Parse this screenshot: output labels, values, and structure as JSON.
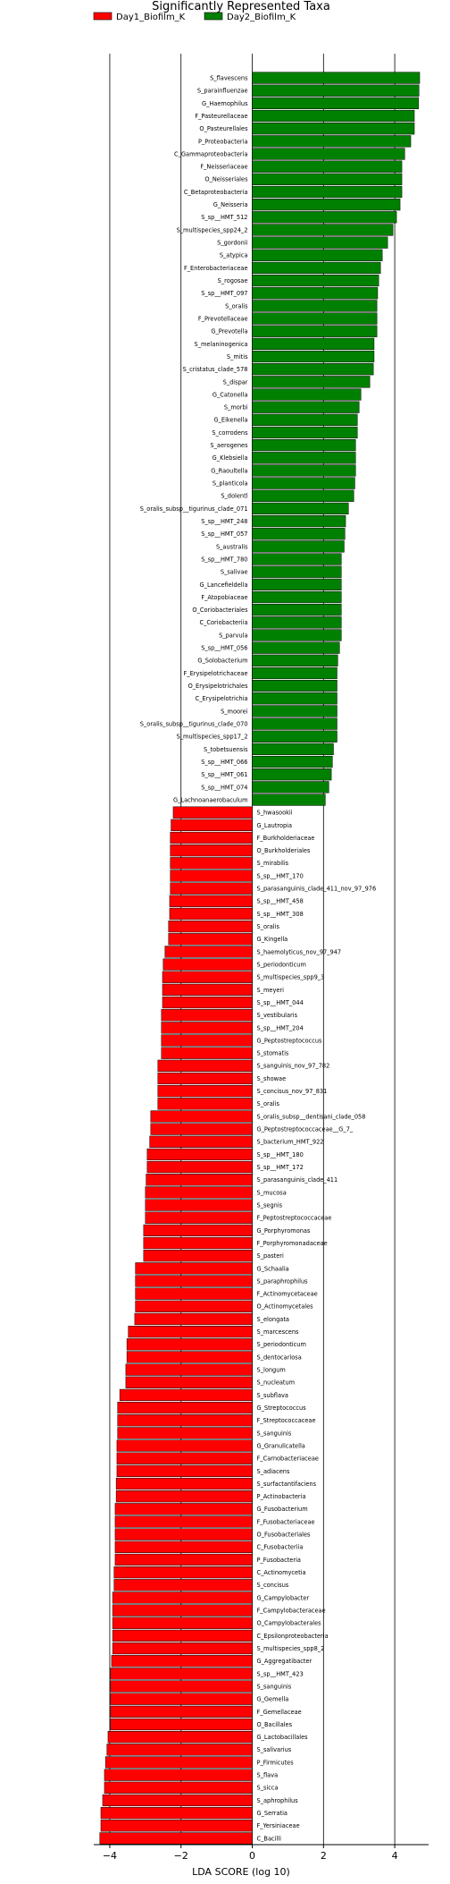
{
  "chart_data": {
    "type": "bar",
    "orientation": "horizontal",
    "title": "Significantly Represented Taxa",
    "xlabel": "LDA SCORE (log 10)",
    "xlim": [
      -4.45,
      4.95
    ],
    "xticks": [
      -4,
      -2,
      0,
      2,
      4
    ],
    "grid": "vertical-lines",
    "legend_position": "top-left",
    "series": [
      {
        "name": "Day1_Biofilm_K",
        "color": "#ff0000"
      },
      {
        "name": "Day2_Biofilm_K",
        "color": "#008000"
      }
    ],
    "bars": [
      {
        "label": "S_flavescens",
        "value": 4.7,
        "series": 1
      },
      {
        "label": "S_parainfluenzae",
        "value": 4.68,
        "series": 1
      },
      {
        "label": "G_Haemophilus",
        "value": 4.67,
        "series": 1
      },
      {
        "label": "F_Pasteurellaceae",
        "value": 4.55,
        "series": 1
      },
      {
        "label": "O_Pasteurellales",
        "value": 4.55,
        "series": 1
      },
      {
        "label": "P_Proteobacteria",
        "value": 4.45,
        "series": 1
      },
      {
        "label": "C_Gammaproteobacteria",
        "value": 4.28,
        "series": 1
      },
      {
        "label": "F_Neisseriaceae",
        "value": 4.2,
        "series": 1
      },
      {
        "label": "O_Neisseriales",
        "value": 4.2,
        "series": 1
      },
      {
        "label": "C_Betaproteobacteria",
        "value": 4.2,
        "series": 1
      },
      {
        "label": "G_Neisseria",
        "value": 4.15,
        "series": 1
      },
      {
        "label": "S_sp__HMT_512",
        "value": 4.05,
        "series": 1
      },
      {
        "label": "S_multispecies_spp24_2",
        "value": 3.95,
        "series": 1
      },
      {
        "label": "S_gordonii",
        "value": 3.8,
        "series": 1
      },
      {
        "label": "S_atypica",
        "value": 3.65,
        "series": 1
      },
      {
        "label": "F_Enterobacteriaceae",
        "value": 3.6,
        "series": 1
      },
      {
        "label": "S_rogosae",
        "value": 3.55,
        "series": 1
      },
      {
        "label": "S_sp__HMT_097",
        "value": 3.52,
        "series": 1
      },
      {
        "label": "S_oralis",
        "value": 3.5,
        "series": 1
      },
      {
        "label": "F_Prevotellaceae",
        "value": 3.5,
        "series": 1
      },
      {
        "label": "G_Prevotella",
        "value": 3.5,
        "series": 1
      },
      {
        "label": "S_melaninogenica",
        "value": 3.42,
        "series": 1
      },
      {
        "label": "S_mitis",
        "value": 3.42,
        "series": 1
      },
      {
        "label": "S_cristatus_clade_578",
        "value": 3.4,
        "series": 1
      },
      {
        "label": "S_dispar",
        "value": 3.3,
        "series": 1
      },
      {
        "label": "G_Catonella",
        "value": 3.05,
        "series": 1
      },
      {
        "label": "S_morbi",
        "value": 3.0,
        "series": 1
      },
      {
        "label": "G_Eikenella",
        "value": 2.95,
        "series": 1
      },
      {
        "label": "S_corrodens",
        "value": 2.95,
        "series": 1
      },
      {
        "label": "S_aerogenes",
        "value": 2.9,
        "series": 1
      },
      {
        "label": "G_Klebsiella",
        "value": 2.9,
        "series": 1
      },
      {
        "label": "G_Raoultella",
        "value": 2.9,
        "series": 1
      },
      {
        "label": "S_planticola",
        "value": 2.88,
        "series": 1
      },
      {
        "label": "S_dolentl",
        "value": 2.85,
        "series": 1
      },
      {
        "label": "S_oralis_subsp__tigurinus_clade_071",
        "value": 2.7,
        "series": 1
      },
      {
        "label": "S_sp__HMT_248",
        "value": 2.62,
        "series": 1
      },
      {
        "label": "S_sp__HMT_057",
        "value": 2.6,
        "series": 1
      },
      {
        "label": "S_australis",
        "value": 2.58,
        "series": 1
      },
      {
        "label": "S_sp__HMT_780",
        "value": 2.5,
        "series": 1
      },
      {
        "label": "S_salivae",
        "value": 2.5,
        "series": 1
      },
      {
        "label": "G_Lancefieldella",
        "value": 2.5,
        "series": 1
      },
      {
        "label": "F_Atopobiaceae",
        "value": 2.5,
        "series": 1
      },
      {
        "label": "O_Coriobacteriales",
        "value": 2.5,
        "series": 1
      },
      {
        "label": "C_Coriobacteriia",
        "value": 2.5,
        "series": 1
      },
      {
        "label": "S_parvula",
        "value": 2.5,
        "series": 1
      },
      {
        "label": "S_sp__HMT_056",
        "value": 2.45,
        "series": 1
      },
      {
        "label": "G_Solobacterium",
        "value": 2.4,
        "series": 1
      },
      {
        "label": "F_Erysipelotrichaceae",
        "value": 2.38,
        "series": 1
      },
      {
        "label": "O_Erysipelotrichales",
        "value": 2.38,
        "series": 1
      },
      {
        "label": "C_Erysipelotrichia",
        "value": 2.38,
        "series": 1
      },
      {
        "label": "S_moorei",
        "value": 2.38,
        "series": 1
      },
      {
        "label": "S_oralis_subsp__tigurinus_clade_070",
        "value": 2.38,
        "series": 1
      },
      {
        "label": "S_multispecies_spp17_2",
        "value": 2.38,
        "series": 1
      },
      {
        "label": "S_tobetsuensis",
        "value": 2.28,
        "series": 1
      },
      {
        "label": "S_sp__HMT_066",
        "value": 2.25,
        "series": 1
      },
      {
        "label": "S_sp__HMT_061",
        "value": 2.22,
        "series": 1
      },
      {
        "label": "S_sp__HMT_074",
        "value": 2.15,
        "series": 1
      },
      {
        "label": "G_Lachnoanaerobaculum",
        "value": 2.05,
        "series": 1
      },
      {
        "label": "S_hwasookii",
        "value": -2.22,
        "series": 0
      },
      {
        "label": "G_Lautropia",
        "value": -2.28,
        "series": 0
      },
      {
        "label": "F_Burkholderiaceae",
        "value": -2.3,
        "series": 0
      },
      {
        "label": "O_Burkholderiales",
        "value": -2.3,
        "series": 0
      },
      {
        "label": "S_mirabilis",
        "value": -2.3,
        "series": 0
      },
      {
        "label": "S_sp__HMT_170",
        "value": -2.3,
        "series": 0
      },
      {
        "label": "S_parasanguinis_clade_411_nov_97_976",
        "value": -2.3,
        "series": 0
      },
      {
        "label": "S_sp__HMT_458",
        "value": -2.32,
        "series": 0
      },
      {
        "label": "S_sp__HMT_308",
        "value": -2.32,
        "series": 0
      },
      {
        "label": "S_oralis",
        "value": -2.35,
        "series": 0
      },
      {
        "label": "G_Kingella",
        "value": -2.35,
        "series": 0
      },
      {
        "label": "S_haemolyticus_nov_97_947",
        "value": -2.45,
        "series": 0
      },
      {
        "label": "S_periodonticum",
        "value": -2.5,
        "series": 0
      },
      {
        "label": "S_multispecies_spp9_3",
        "value": -2.52,
        "series": 0
      },
      {
        "label": "S_meyeri",
        "value": -2.52,
        "series": 0
      },
      {
        "label": "S_sp__HMT_044",
        "value": -2.52,
        "series": 0
      },
      {
        "label": "S_vestibularis",
        "value": -2.55,
        "series": 0
      },
      {
        "label": "S_sp__HMT_204",
        "value": -2.55,
        "series": 0
      },
      {
        "label": "G_Peptostreptococcus",
        "value": -2.55,
        "series": 0
      },
      {
        "label": "S_stomatis",
        "value": -2.55,
        "series": 0
      },
      {
        "label": "S_sanguinis_nov_97_782",
        "value": -2.65,
        "series": 0
      },
      {
        "label": "S_showae",
        "value": -2.65,
        "series": 0
      },
      {
        "label": "S_concisus_nov_97_831",
        "value": -2.65,
        "series": 0
      },
      {
        "label": "S_oralis",
        "value": -2.65,
        "series": 0
      },
      {
        "label": "S_oralis_subsp__dentisani_clade_058",
        "value": -2.85,
        "series": 0
      },
      {
        "label": "G_Peptostreptococcaceae__G_7_",
        "value": -2.85,
        "series": 0
      },
      {
        "label": "S_bacterium_HMT_922",
        "value": -2.88,
        "series": 0
      },
      {
        "label": "S_sp__HMT_180",
        "value": -2.95,
        "series": 0
      },
      {
        "label": "S_sp__HMT_172",
        "value": -2.95,
        "series": 0
      },
      {
        "label": "S_parasanguinis_clade_411",
        "value": -2.98,
        "series": 0
      },
      {
        "label": "S_mucosa",
        "value": -3.0,
        "series": 0
      },
      {
        "label": "S_segnis",
        "value": -3.0,
        "series": 0
      },
      {
        "label": "F_Peptostreptococcaceae",
        "value": -3.0,
        "series": 0
      },
      {
        "label": "G_Porphyromonas",
        "value": -3.05,
        "series": 0
      },
      {
        "label": "F_Porphyromonadaceae",
        "value": -3.05,
        "series": 0
      },
      {
        "label": "S_pasteri",
        "value": -3.05,
        "series": 0
      },
      {
        "label": "G_Schaalia",
        "value": -3.28,
        "series": 0
      },
      {
        "label": "S_paraphrophilus",
        "value": -3.28,
        "series": 0
      },
      {
        "label": "F_Actinomycetaceae",
        "value": -3.28,
        "series": 0
      },
      {
        "label": "O_Actinomycetales",
        "value": -3.28,
        "series": 0
      },
      {
        "label": "S_elongata",
        "value": -3.3,
        "series": 0
      },
      {
        "label": "S_marcescens",
        "value": -3.48,
        "series": 0
      },
      {
        "label": "S_periodonticum",
        "value": -3.52,
        "series": 0
      },
      {
        "label": "S_dentocariosa",
        "value": -3.52,
        "series": 0
      },
      {
        "label": "S_longum",
        "value": -3.55,
        "series": 0
      },
      {
        "label": "S_nucleatum",
        "value": -3.55,
        "series": 0
      },
      {
        "label": "S_subflava",
        "value": -3.72,
        "series": 0
      },
      {
        "label": "G_Streptococcus",
        "value": -3.78,
        "series": 0
      },
      {
        "label": "F_Streptococcaceae",
        "value": -3.78,
        "series": 0
      },
      {
        "label": "S_sanguinis",
        "value": -3.78,
        "series": 0
      },
      {
        "label": "G_Granulicatella",
        "value": -3.8,
        "series": 0
      },
      {
        "label": "F_Carnobacteriaceae",
        "value": -3.8,
        "series": 0
      },
      {
        "label": "S_adiacens",
        "value": -3.8,
        "series": 0
      },
      {
        "label": "S_surfactantifaciens",
        "value": -3.82,
        "series": 0
      },
      {
        "label": "P_Actinobacteria",
        "value": -3.82,
        "series": 0
      },
      {
        "label": "G_Fusobacterium",
        "value": -3.85,
        "series": 0
      },
      {
        "label": "F_Fusobacteriaceae",
        "value": -3.85,
        "series": 0
      },
      {
        "label": "O_Fusobacteriales",
        "value": -3.85,
        "series": 0
      },
      {
        "label": "C_Fusobacteriia",
        "value": -3.85,
        "series": 0
      },
      {
        "label": "P_Fusobacteria",
        "value": -3.85,
        "series": 0
      },
      {
        "label": "C_Actinomycetia",
        "value": -3.88,
        "series": 0
      },
      {
        "label": "S_concisus",
        "value": -3.88,
        "series": 0
      },
      {
        "label": "G_Campylobacter",
        "value": -3.92,
        "series": 0
      },
      {
        "label": "F_Campylobacteraceae",
        "value": -3.92,
        "series": 0
      },
      {
        "label": "O_Campylobacterales",
        "value": -3.92,
        "series": 0
      },
      {
        "label": "C_Epsilonproteobacteria",
        "value": -3.92,
        "series": 0
      },
      {
        "label": "S_multispecies_spp8_2",
        "value": -3.92,
        "series": 0
      },
      {
        "label": "G_Aggregatibacter",
        "value": -3.95,
        "series": 0
      },
      {
        "label": "S_sp__HMT_423",
        "value": -3.98,
        "series": 0
      },
      {
        "label": "S_sanguinis",
        "value": -3.98,
        "series": 0
      },
      {
        "label": "G_Gemella",
        "value": -3.98,
        "series": 0
      },
      {
        "label": "F_Gemellaceae",
        "value": -3.98,
        "series": 0
      },
      {
        "label": "O_Bacillales",
        "value": -3.98,
        "series": 0
      },
      {
        "label": "G_Lactobacillales",
        "value": -4.05,
        "series": 0
      },
      {
        "label": "S_salivarius",
        "value": -4.08,
        "series": 0
      },
      {
        "label": "P_Firmicutes",
        "value": -4.12,
        "series": 0
      },
      {
        "label": "S_flava",
        "value": -4.15,
        "series": 0
      },
      {
        "label": "S_sicca",
        "value": -4.15,
        "series": 0
      },
      {
        "label": "S_aphrophilus",
        "value": -4.2,
        "series": 0
      },
      {
        "label": "G_Serratia",
        "value": -4.25,
        "series": 0
      },
      {
        "label": "F_Yersiniaceae",
        "value": -4.25,
        "series": 0
      },
      {
        "label": "C_Bacilli",
        "value": -4.28,
        "series": 0
      }
    ]
  }
}
